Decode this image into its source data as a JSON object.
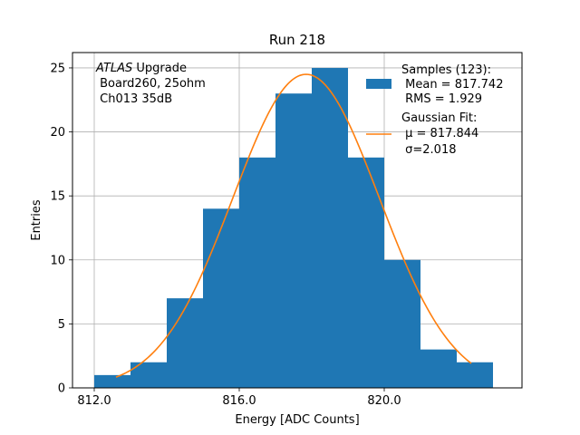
{
  "chart_data": {
    "type": "bar",
    "title": "Run 218",
    "xlabel": "Energy [ADC Counts]",
    "ylabel": "Entries",
    "xlim": [
      811.4,
      823.8
    ],
    "ylim": [
      0,
      26.2
    ],
    "xticks": [
      812.0,
      816.0,
      820.0
    ],
    "xtick_labels": [
      "812.0",
      "816.0",
      "820.0"
    ],
    "yticks": [
      0,
      5,
      10,
      15,
      20,
      25
    ],
    "ytick_labels": [
      "0",
      "5",
      "10",
      "15",
      "20",
      "25"
    ],
    "grid": true,
    "bin_edges": [
      812,
      813,
      814,
      815,
      816,
      817,
      818,
      819,
      820,
      821,
      822,
      823
    ],
    "counts": [
      1,
      2,
      7,
      14,
      18,
      23,
      25,
      18,
      10,
      3,
      2
    ],
    "fit": {
      "amplitude": 24.5,
      "mu": 817.844,
      "sigma": 2.018,
      "x_range": [
        812.6,
        822.4
      ]
    },
    "series": [
      {
        "name": "Samples (123):",
        "extra_lines": [
          " Mean = 817.742",
          " RMS = 1.929"
        ],
        "color": "#1f77b4",
        "kind": "bar"
      },
      {
        "name": "Gaussian Fit:",
        "extra_lines": [
          " μ = 817.844",
          " σ=2.018"
        ],
        "color": "#ff7f0e",
        "kind": "line"
      }
    ],
    "legend_position": "top-right",
    "annotation": {
      "italic": "ATLAS",
      "rest": " Upgrade",
      "lines": [
        " Board260, 25ohm",
        " Ch013 35dB"
      ]
    }
  }
}
